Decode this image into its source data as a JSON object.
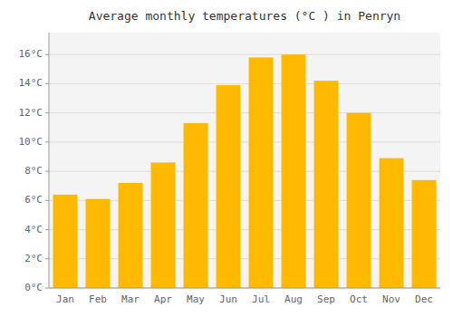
{
  "chart_data": {
    "type": "bar",
    "title": "Average monthly temperatures (°C ) in Penryn",
    "categories": [
      "Jan",
      "Feb",
      "Mar",
      "Apr",
      "May",
      "Jun",
      "Jul",
      "Aug",
      "Sep",
      "Oct",
      "Nov",
      "Dec"
    ],
    "values": [
      6.4,
      6.1,
      7.2,
      8.6,
      11.3,
      13.9,
      15.8,
      16.0,
      14.2,
      12.0,
      8.9,
      7.4
    ],
    "color": "#FFBA00",
    "ylim": [
      0,
      17.5
    ],
    "yticks": [
      {
        "value": 0,
        "label": "0°C"
      },
      {
        "value": 2,
        "label": "2°C"
      },
      {
        "value": 4,
        "label": "4°C"
      },
      {
        "value": 6,
        "label": "6°C"
      },
      {
        "value": 8,
        "label": "8°C"
      },
      {
        "value": 10,
        "label": "10°C"
      },
      {
        "value": 12,
        "label": "12°C"
      },
      {
        "value": 14,
        "label": "14°C"
      },
      {
        "value": 16,
        "label": "16°C"
      }
    ],
    "grid": true
  }
}
